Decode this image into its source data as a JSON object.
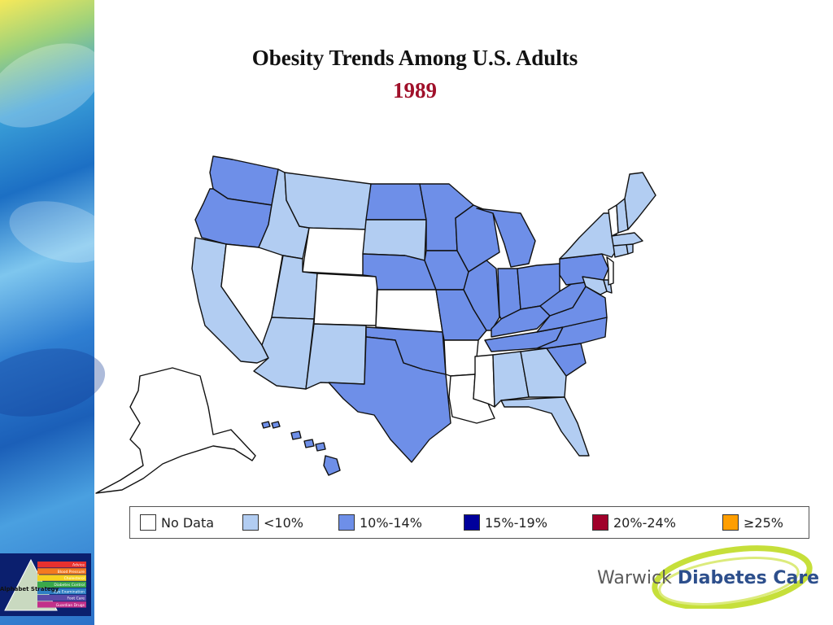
{
  "title": "Obesity Trends Among U.S. Adults",
  "year": "1989",
  "legend": [
    {
      "label": "No Data",
      "color": "#ffffff"
    },
    {
      "label": "<10%",
      "color": "#b2cdf2"
    },
    {
      "label": "10%-14%",
      "color": "#6e8fe8"
    },
    {
      "label": "15%-19%",
      "color": "#00009c"
    },
    {
      "label": "20%-24%",
      "color": "#a0002a"
    },
    {
      "label": "≥25%",
      "color": "#ff9e00"
    }
  ],
  "states": {
    "no_data": [
      "NV",
      "WY",
      "CO",
      "KS",
      "AR",
      "MS",
      "LA",
      "VT",
      "NJ",
      "AK"
    ],
    "under_10": [
      "CA",
      "ID",
      "MT",
      "UT",
      "AZ",
      "NM",
      "SD",
      "AL",
      "GA",
      "FL",
      "ME",
      "NY",
      "CT",
      "MA",
      "NH",
      "MD",
      "DE",
      "RI"
    ],
    "10_to_14": [
      "WA",
      "OR",
      "ND",
      "NE",
      "MN",
      "IA",
      "MO",
      "WI",
      "IL",
      "MI",
      "IN",
      "OH",
      "KY",
      "TN",
      "WV",
      "VA",
      "NC",
      "SC",
      "PA",
      "TX",
      "OK",
      "HI"
    ]
  },
  "alphabet_logo": {
    "title": "Alphabet Strategy",
    "rows": [
      "Advice",
      "Blood Pressure",
      "Cholesterol",
      "Diabetes Control",
      "Eye Examination",
      "Foot Care",
      "Guardian Drugs"
    ]
  },
  "logo": {
    "text_light": "Warwick",
    "text_bold": "Diabetes Care"
  },
  "colors": {
    "no_data": "#ffffff",
    "under_10": "#b2cdf2",
    "10_to_14": "#6e8fe8",
    "outline": "#111111"
  }
}
